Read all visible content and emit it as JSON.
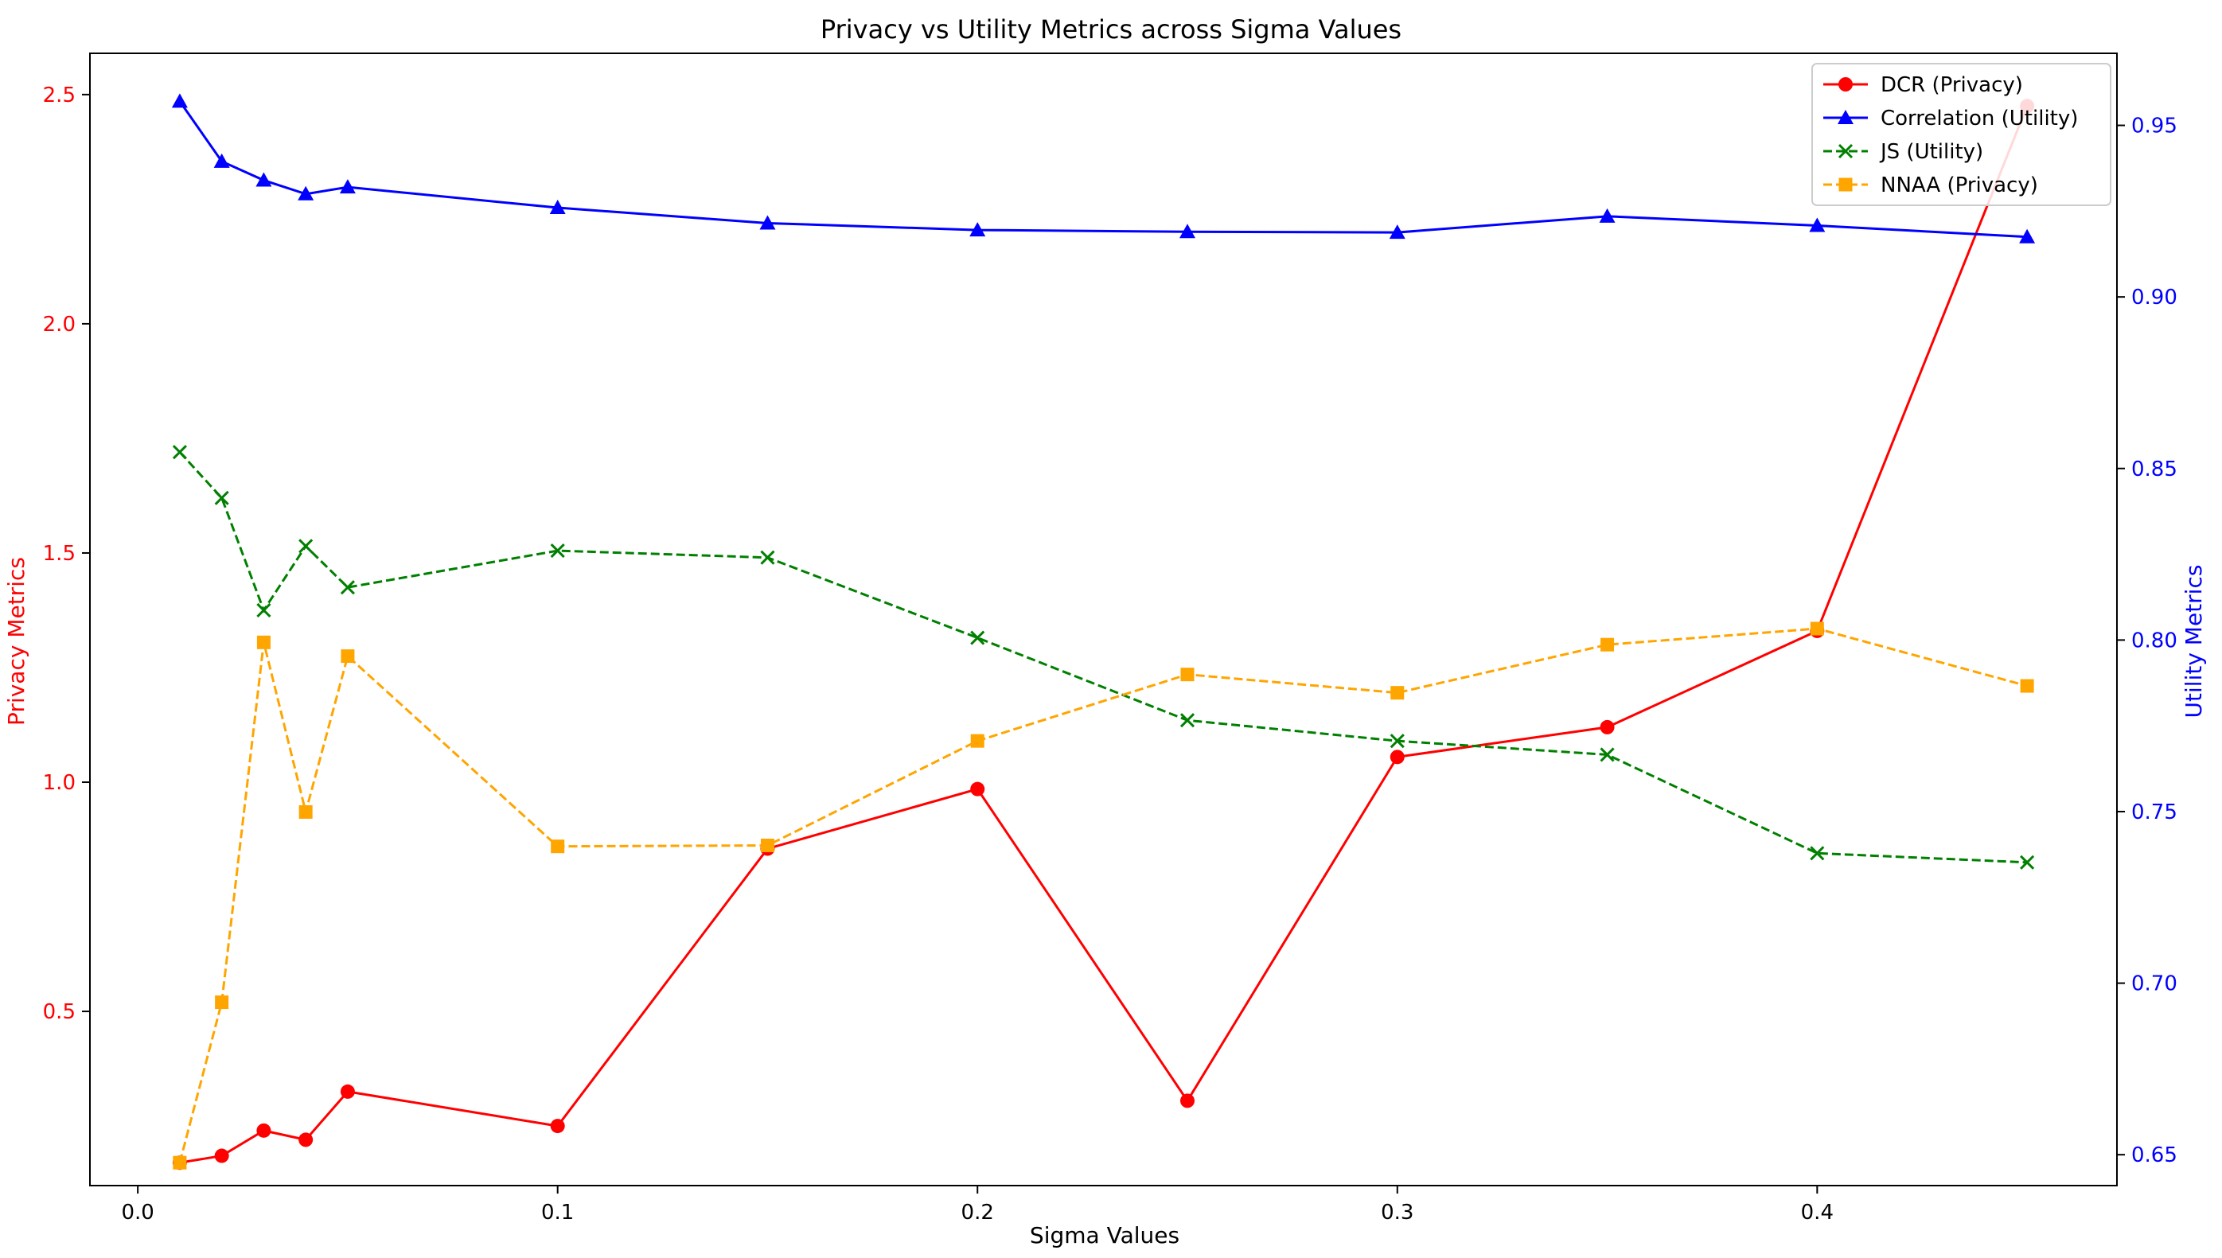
{
  "chart_data": {
    "type": "line",
    "title": "Privacy vs Utility Metrics across Sigma Values",
    "xlabel": "Sigma Values",
    "ylabel_left": "Privacy Metrics",
    "ylabel_right": "Utility Metrics",
    "xlim": [
      -0.0114,
      0.4714
    ],
    "ylim_left": [
      0.12,
      2.59
    ],
    "ylim_right": [
      0.641,
      0.971
    ],
    "x_ticks": [
      0.0,
      0.1,
      0.2,
      0.3,
      0.4
    ],
    "x_tick_labels": [
      "0.0",
      "0.1",
      "0.2",
      "0.3",
      "0.4"
    ],
    "y_left_ticks": [
      0.5,
      1.0,
      1.5,
      2.0,
      2.5
    ],
    "y_left_tick_labels": [
      "0.5",
      "1.0",
      "1.5",
      "2.0",
      "2.5"
    ],
    "y_right_ticks": [
      0.65,
      0.7,
      0.75,
      0.8,
      0.85,
      0.9,
      0.95
    ],
    "y_right_tick_labels": [
      "0.65",
      "0.70",
      "0.75",
      "0.80",
      "0.85",
      "0.90",
      "0.95"
    ],
    "left_color": "#ff0000",
    "right_color": "#0000ff",
    "grid": false,
    "legend_position": "top-right",
    "x": [
      0.01,
      0.02,
      0.03,
      0.04,
      0.05,
      0.1,
      0.15,
      0.2,
      0.25,
      0.3,
      0.35,
      0.4,
      0.45
    ],
    "series": [
      {
        "name": "DCR (Privacy)",
        "axis": "left",
        "color": "#ff0000",
        "linestyle": "solid",
        "marker": "circle",
        "values": [
          0.17,
          0.185,
          0.24,
          0.22,
          0.325,
          0.25,
          0.855,
          0.985,
          0.305,
          1.055,
          1.12,
          1.33,
          2.475
        ]
      },
      {
        "name": "Correlation (Utility)",
        "axis": "right",
        "color": "#0000ff",
        "linestyle": "solid",
        "marker": "triangle",
        "values": [
          0.957,
          0.9395,
          0.934,
          0.93,
          0.932,
          0.926,
          0.9215,
          0.9195,
          0.919,
          0.9188,
          0.9235,
          0.9208,
          0.9175
        ]
      },
      {
        "name": "JS (Utility)",
        "axis": "left",
        "color": "#008000",
        "linestyle": "dashed",
        "marker": "x",
        "values": [
          1.72,
          1.62,
          1.375,
          1.515,
          1.425,
          1.505,
          1.49,
          1.315,
          1.135,
          1.09,
          1.06,
          0.845,
          0.825
        ]
      },
      {
        "name": "NNAA (Privacy)",
        "axis": "left",
        "color": "#ffa500",
        "linestyle": "dashed",
        "marker": "square",
        "values": [
          0.17,
          0.52,
          1.305,
          0.935,
          1.275,
          0.86,
          0.862,
          1.09,
          1.235,
          1.195,
          1.3,
          1.335,
          1.21
        ]
      }
    ]
  }
}
